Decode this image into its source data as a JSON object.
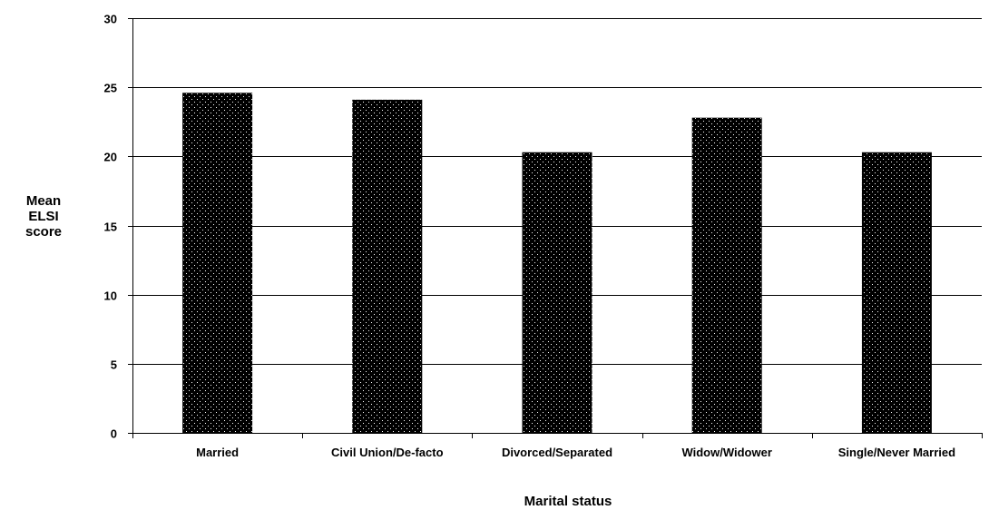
{
  "chart_data": {
    "type": "bar",
    "title": "",
    "xlabel": "Marital status",
    "ylabel": [
      "Mean",
      "ELSI",
      "score"
    ],
    "categories": [
      "Married",
      "Civil Union/De-facto",
      "Divorced/Separated",
      "Widow/Widower",
      "Single/Never Married"
    ],
    "values": [
      24.6,
      24.1,
      20.3,
      22.8,
      20.3
    ],
    "ylim": [
      0,
      30
    ],
    "yticks": [
      0,
      5,
      10,
      15,
      20,
      25,
      30
    ],
    "grid": true,
    "legend": "none",
    "colors": {
      "bar_fill": "#000000",
      "bar_dots": "#ffffff",
      "axis": "#000000",
      "grid": "#000000"
    }
  }
}
